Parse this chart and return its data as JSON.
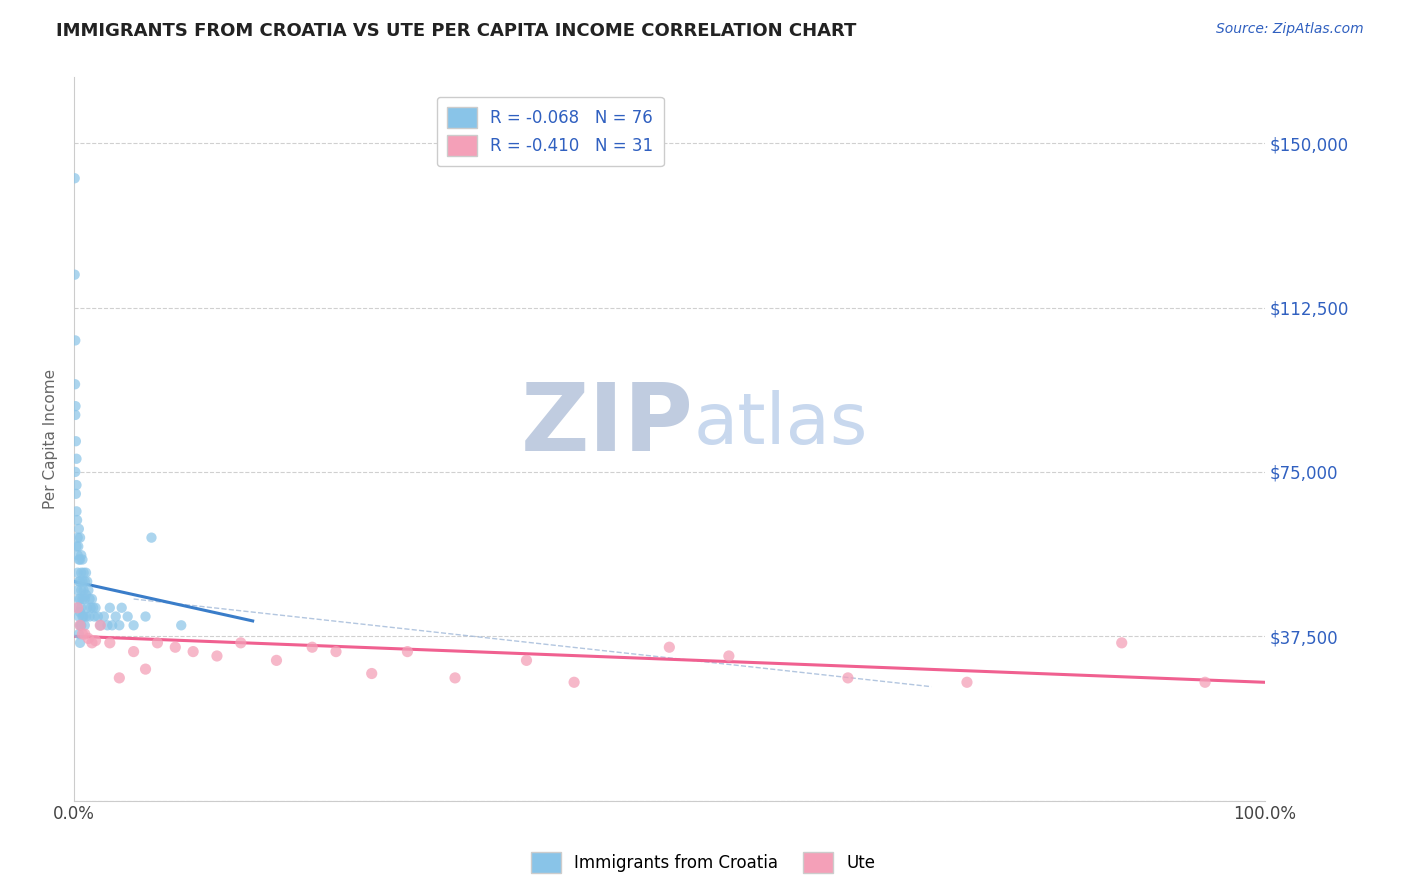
{
  "title": "IMMIGRANTS FROM CROATIA VS UTE PER CAPITA INCOME CORRELATION CHART",
  "source_text": "Source: ZipAtlas.com",
  "ylabel": "Per Capita Income",
  "x_min": 0.0,
  "x_max": 1.0,
  "y_min": 5000,
  "y_max": 165000,
  "yticks": [
    0,
    37500,
    75000,
    112500,
    150000
  ],
  "ytick_labels": [
    "",
    "$37,500",
    "$75,000",
    "$112,500",
    "$150,000"
  ],
  "xticks": [
    0.0,
    1.0
  ],
  "xtick_labels": [
    "0.0%",
    "100.0%"
  ],
  "color_blue": "#89c4e8",
  "color_pink": "#f4a0b8",
  "color_trend_blue": "#3a7dc9",
  "color_trend_pink": "#f06090",
  "color_dashed": "#a0b8d8",
  "color_title": "#222222",
  "color_ytick": "#3060c0",
  "color_source": "#3060c0",
  "watermark_ZIP": "#c0cce0",
  "watermark_atlas": "#c8d8ee",
  "background_color": "#ffffff",
  "grid_color": "#d0d0d0",
  "blue_scatter_x": [
    0.0005,
    0.0005,
    0.0008,
    0.001,
    0.001,
    0.001,
    0.0012,
    0.0015,
    0.0015,
    0.002,
    0.002,
    0.002,
    0.002,
    0.0025,
    0.003,
    0.003,
    0.003,
    0.003,
    0.003,
    0.0035,
    0.004,
    0.004,
    0.004,
    0.004,
    0.004,
    0.004,
    0.005,
    0.005,
    0.005,
    0.005,
    0.005,
    0.005,
    0.005,
    0.006,
    0.006,
    0.006,
    0.006,
    0.006,
    0.007,
    0.007,
    0.007,
    0.007,
    0.008,
    0.008,
    0.008,
    0.009,
    0.009,
    0.009,
    0.01,
    0.01,
    0.01,
    0.011,
    0.011,
    0.012,
    0.013,
    0.013,
    0.014,
    0.015,
    0.016,
    0.017,
    0.018,
    0.02,
    0.022,
    0.025,
    0.028,
    0.03,
    0.032,
    0.035,
    0.038,
    0.04,
    0.045,
    0.05,
    0.06,
    0.065,
    0.09
  ],
  "blue_scatter_y": [
    142000,
    120000,
    95000,
    105000,
    88000,
    75000,
    90000,
    82000,
    70000,
    78000,
    72000,
    66000,
    58000,
    64000,
    60000,
    56000,
    52000,
    48000,
    44000,
    58000,
    62000,
    55000,
    50000,
    46000,
    42000,
    38000,
    60000,
    55000,
    50000,
    46000,
    43000,
    40000,
    36000,
    56000,
    52000,
    48000,
    44000,
    40000,
    55000,
    50000,
    46000,
    42000,
    52000,
    48000,
    42000,
    50000,
    46000,
    40000,
    52000,
    47000,
    42000,
    50000,
    44000,
    48000,
    46000,
    42000,
    44000,
    46000,
    44000,
    42000,
    44000,
    42000,
    40000,
    42000,
    40000,
    44000,
    40000,
    42000,
    40000,
    44000,
    42000,
    40000,
    42000,
    60000,
    40000
  ],
  "pink_scatter_x": [
    0.003,
    0.005,
    0.007,
    0.009,
    0.012,
    0.015,
    0.018,
    0.022,
    0.03,
    0.038,
    0.05,
    0.06,
    0.07,
    0.085,
    0.1,
    0.12,
    0.14,
    0.17,
    0.2,
    0.22,
    0.25,
    0.28,
    0.32,
    0.38,
    0.42,
    0.5,
    0.55,
    0.65,
    0.75,
    0.88,
    0.95
  ],
  "pink_scatter_y": [
    44000,
    40000,
    38000,
    38000,
    37000,
    36000,
    36500,
    40000,
    36000,
    28000,
    34000,
    30000,
    36000,
    35000,
    34000,
    33000,
    36000,
    32000,
    35000,
    34000,
    29000,
    34000,
    28000,
    32000,
    27000,
    35000,
    33000,
    28000,
    27000,
    36000,
    27000
  ],
  "blue_trend_x": [
    0.0,
    0.15
  ],
  "blue_trend_y": [
    50000,
    41000
  ],
  "pink_trend_x": [
    0.0,
    1.0
  ],
  "pink_trend_y": [
    37500,
    27000
  ],
  "dashed_line_x": [
    0.05,
    0.72
  ],
  "dashed_line_y": [
    46000,
    26000
  ]
}
